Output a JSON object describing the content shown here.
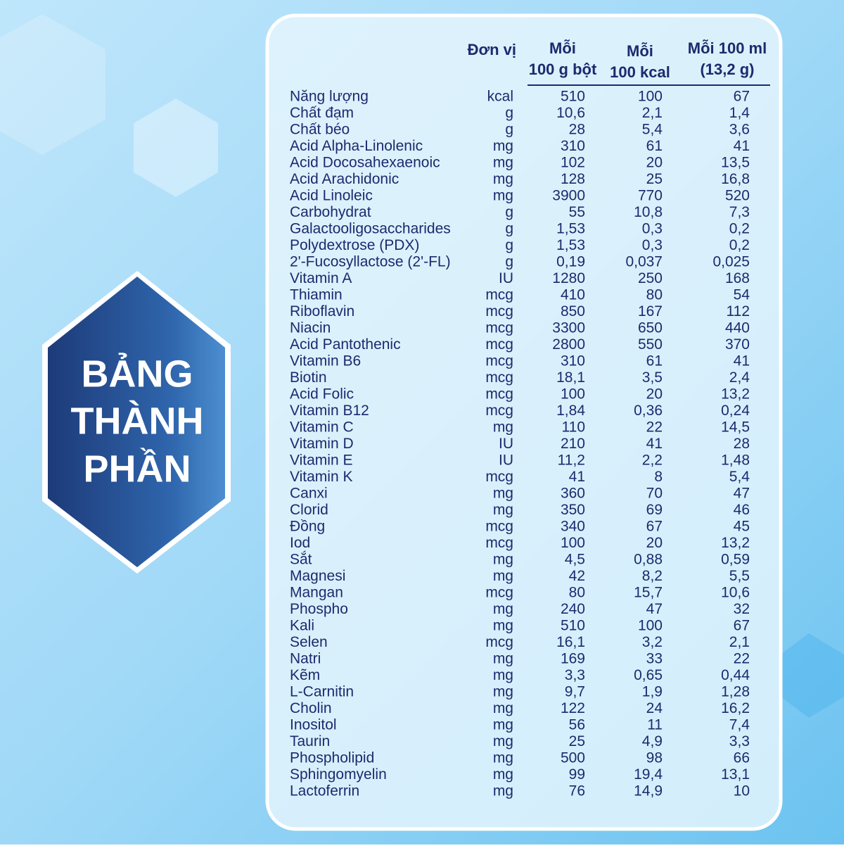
{
  "title": [
    "BẢNG",
    "THÀNH",
    "PHẦN"
  ],
  "table": {
    "header": [
      [
        "Đơn vị"
      ],
      [
        "Mỗi",
        "100 g bột"
      ],
      [
        "Mỗi",
        "100 kcal"
      ],
      [
        "Mỗi 100 ml",
        "(13,2 g)"
      ]
    ],
    "rows": [
      [
        "Năng lượng",
        "kcal",
        "510",
        "100",
        "67"
      ],
      [
        "Chất đạm",
        "g",
        "10,6",
        "2,1",
        "1,4"
      ],
      [
        "Chất béo",
        "g",
        "28",
        "5,4",
        "3,6"
      ],
      [
        "Acid Alpha-Linolenic",
        "mg",
        "310",
        "61",
        "41"
      ],
      [
        "Acid Docosahexaenoic",
        "mg",
        "102",
        "20",
        "13,5"
      ],
      [
        "Acid Arachidonic",
        "mg",
        "128",
        "25",
        "16,8"
      ],
      [
        "Acid Linoleic",
        "mg",
        "3900",
        "770",
        "520"
      ],
      [
        "Carbohydrat",
        "g",
        "55",
        "10,8",
        "7,3"
      ],
      [
        "Galactooligosaccharides",
        "g",
        "1,53",
        "0,3",
        "0,2"
      ],
      [
        "Polydextrose (PDX)",
        "g",
        "1,53",
        "0,3",
        "0,2"
      ],
      [
        "2'-Fucosyllactose (2'-FL)",
        "g",
        "0,19",
        "0,037",
        "0,025"
      ],
      [
        "Vitamin A",
        "IU",
        "1280",
        "250",
        "168"
      ],
      [
        "Thiamin",
        "mcg",
        "410",
        "80",
        "54"
      ],
      [
        "Riboflavin",
        "mcg",
        "850",
        "167",
        "112"
      ],
      [
        "Niacin",
        "mcg",
        "3300",
        "650",
        "440"
      ],
      [
        "Acid Pantothenic",
        "mcg",
        "2800",
        "550",
        "370"
      ],
      [
        "Vitamin B6",
        "mcg",
        "310",
        "61",
        "41"
      ],
      [
        "Biotin",
        "mcg",
        "18,1",
        "3,5",
        "2,4"
      ],
      [
        "Acid Folic",
        "mcg",
        "100",
        "20",
        "13,2"
      ],
      [
        "Vitamin B12",
        "mcg",
        "1,84",
        "0,36",
        "0,24"
      ],
      [
        "Vitamin C",
        "mg",
        "110",
        "22",
        "14,5"
      ],
      [
        "Vitamin D",
        "IU",
        "210",
        "41",
        "28"
      ],
      [
        "Vitamin E",
        "IU",
        "11,2",
        "2,2",
        "1,48"
      ],
      [
        "Vitamin K",
        "mcg",
        "41",
        "8",
        "5,4"
      ],
      [
        "Canxi",
        "mg",
        "360",
        "70",
        "47"
      ],
      [
        "Clorid",
        "mg",
        "350",
        "69",
        "46"
      ],
      [
        "Đồng",
        "mcg",
        "340",
        "67",
        "45"
      ],
      [
        "Iod",
        "mcg",
        "100",
        "20",
        "13,2"
      ],
      [
        "Sắt",
        "mg",
        "4,5",
        "0,88",
        "0,59"
      ],
      [
        "Magnesi",
        "mg",
        "42",
        "8,2",
        "5,5"
      ],
      [
        "Mangan",
        "mcg",
        "80",
        "15,7",
        "10,6"
      ],
      [
        "Phospho",
        "mg",
        "240",
        "47",
        "32"
      ],
      [
        "Kali",
        "mg",
        "510",
        "100",
        "67"
      ],
      [
        "Selen",
        "mcg",
        "16,1",
        "3,2",
        "2,1"
      ],
      [
        "Natri",
        "mg",
        "169",
        "33",
        "22"
      ],
      [
        "Kẽm",
        "mg",
        "3,3",
        "0,65",
        "0,44"
      ],
      [
        "L-Carnitin",
        "mg",
        "9,7",
        "1,9",
        "1,28"
      ],
      [
        "Cholin",
        "mg",
        "122",
        "24",
        "16,2"
      ],
      [
        "Inositol",
        "mg",
        "56",
        "11",
        "7,4"
      ],
      [
        "Taurin",
        "mg",
        "25",
        "4,9",
        "3,3"
      ],
      [
        "Phospholipid",
        "mg",
        "500",
        "98",
        "66"
      ],
      [
        "Sphingomyelin",
        "mg",
        "99",
        "19,4",
        "13,1"
      ],
      [
        "Lactoferrin",
        "mg",
        "76",
        "14,9",
        "10"
      ]
    ]
  }
}
